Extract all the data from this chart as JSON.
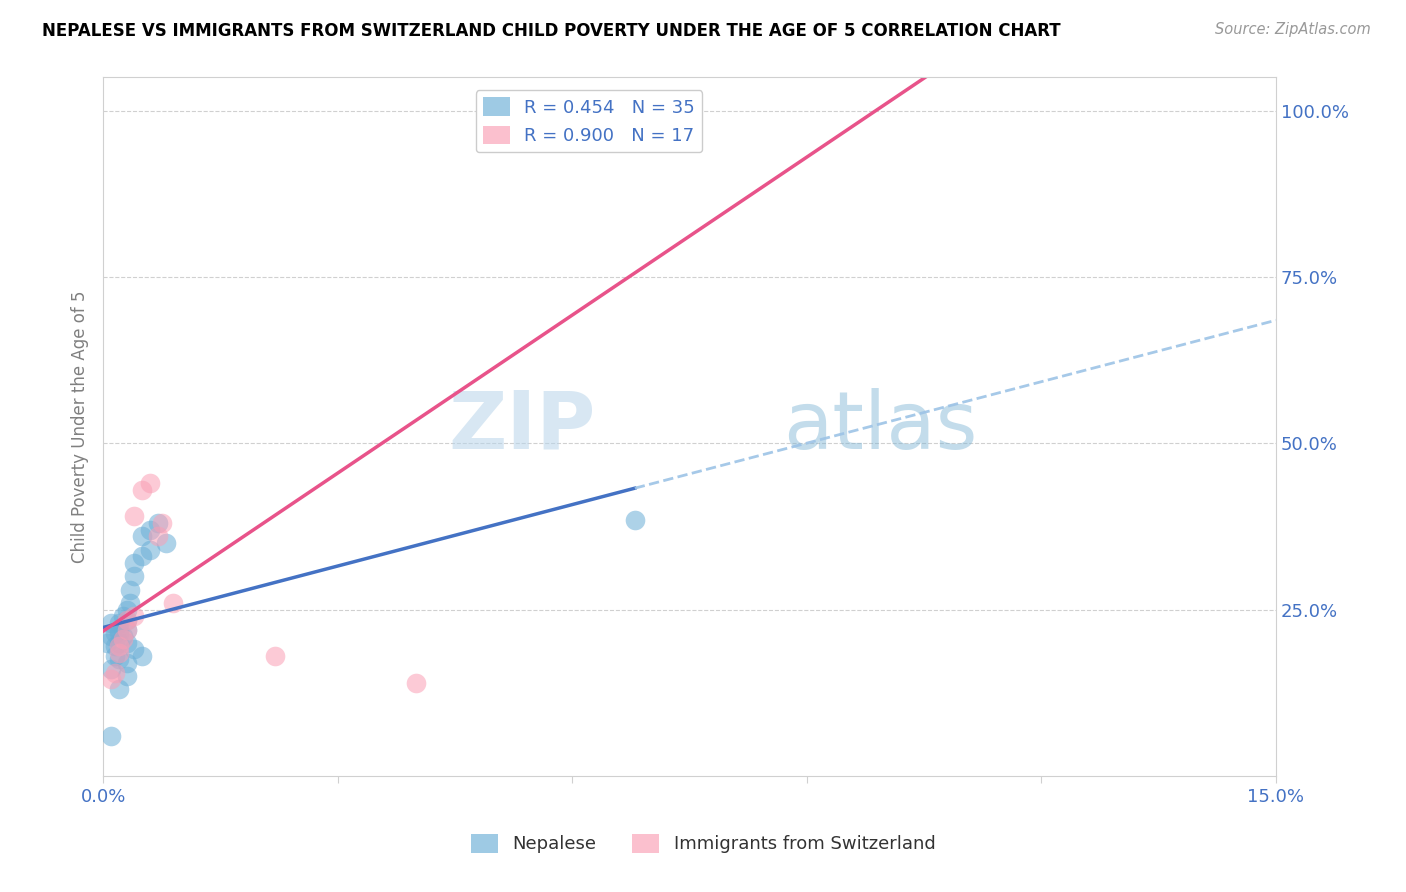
{
  "title": "NEPALESE VS IMMIGRANTS FROM SWITZERLAND CHILD POVERTY UNDER THE AGE OF 5 CORRELATION CHART",
  "source": "Source: ZipAtlas.com",
  "ylabel": "Child Poverty Under the Age of 5",
  "xlim": [
    0.0,
    0.15
  ],
  "ylim": [
    0.0,
    1.05
  ],
  "x_tick_positions": [
    0.0,
    0.03,
    0.06,
    0.09,
    0.12,
    0.15
  ],
  "x_tick_labels": [
    "0.0%",
    "",
    "",
    "",
    "",
    "15.0%"
  ],
  "y_tick_positions": [
    0.0,
    0.25,
    0.5,
    0.75,
    1.0
  ],
  "y_tick_labels": [
    "",
    "25.0%",
    "50.0%",
    "75.0%",
    "100.0%"
  ],
  "nepalese_color": "#6baed6",
  "swiss_color": "#fa9fb5",
  "nepalese_R": 0.454,
  "nepalese_N": 35,
  "swiss_R": 0.9,
  "swiss_N": 17,
  "nepalese_x": [
    0.0005,
    0.001,
    0.001,
    0.0015,
    0.0015,
    0.002,
    0.002,
    0.002,
    0.002,
    0.0025,
    0.0025,
    0.003,
    0.003,
    0.003,
    0.003,
    0.0035,
    0.0035,
    0.004,
    0.004,
    0.005,
    0.005,
    0.006,
    0.006,
    0.007,
    0.008,
    0.001,
    0.0015,
    0.002,
    0.003,
    0.004,
    0.005,
    0.002,
    0.003,
    0.068,
    0.001
  ],
  "nepalese_y": [
    0.2,
    0.21,
    0.23,
    0.195,
    0.215,
    0.2,
    0.215,
    0.22,
    0.23,
    0.21,
    0.24,
    0.2,
    0.22,
    0.235,
    0.25,
    0.26,
    0.28,
    0.3,
    0.32,
    0.33,
    0.36,
    0.34,
    0.37,
    0.38,
    0.35,
    0.16,
    0.18,
    0.175,
    0.17,
    0.19,
    0.18,
    0.13,
    0.15,
    0.385,
    0.06
  ],
  "swiss_x": [
    0.001,
    0.0015,
    0.002,
    0.002,
    0.0025,
    0.003,
    0.003,
    0.004,
    0.004,
    0.005,
    0.006,
    0.007,
    0.0075,
    0.009,
    0.022,
    0.04,
    0.065
  ],
  "swiss_y": [
    0.145,
    0.155,
    0.185,
    0.195,
    0.205,
    0.22,
    0.235,
    0.24,
    0.39,
    0.43,
    0.44,
    0.36,
    0.38,
    0.26,
    0.18,
    0.14,
    1.0
  ],
  "blue_line_color": "#4472c4",
  "pink_line_color": "#e8538a",
  "dashed_line_color": "#9dc3e6",
  "watermark_text": "ZIPatlas",
  "watermark_color": "#c5dff0",
  "legend_label_1": "R = 0.454   N = 35",
  "legend_label_2": "R = 0.900   N = 17",
  "bottom_legend_1": "Nepalese",
  "bottom_legend_2": "Immigrants from Switzerland",
  "grid_color": "#d0d0d0",
  "text_color": "#4472c4",
  "label_color": "#808080"
}
